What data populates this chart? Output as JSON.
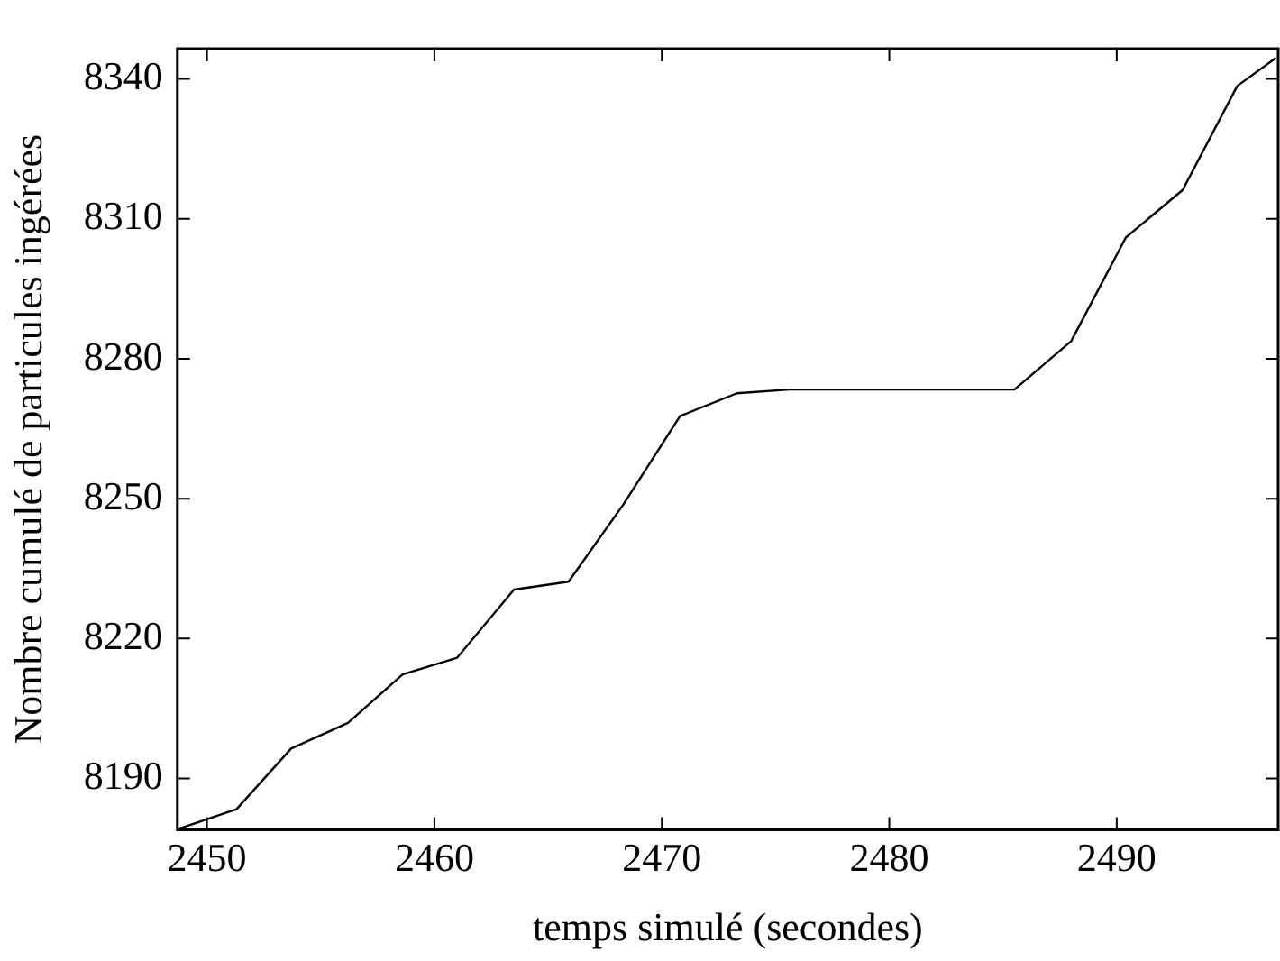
{
  "chart_data": {
    "type": "line",
    "xlabel": "temps simulé (secondes)",
    "ylabel": "Nombre cumulé de particules ingérées",
    "xlim": [
      2448.7,
      2497.1
    ],
    "xticks": [
      2450,
      2460,
      2470,
      2480,
      2490
    ],
    "ylim": [
      8179,
      8346.5
    ],
    "yticks": [
      8190,
      8220,
      8250,
      8280,
      8310,
      8340
    ],
    "grid": false,
    "legend": false,
    "marker": "none",
    "line_style": "solid",
    "series": [
      {
        "color": "#000000",
        "x": [
          2448.7,
          2451.3,
          2453.7,
          2456.2,
          2458.6,
          2461.0,
          2463.5,
          2465.9,
          2468.3,
          2470.8,
          2473.3,
          2475.6,
          2485.5,
          2488.0,
          2490.4,
          2492.9,
          2495.3,
          2497.0
        ],
        "values": [
          8179.1,
          8183.4,
          8196.4,
          8201.9,
          8212.3,
          8215.9,
          8230.5,
          8232.2,
          8248.7,
          8267.7,
          8272.6,
          8273.4,
          8273.4,
          8283.8,
          8306,
          8316.2,
          8338.5,
          8344.5
        ]
      }
    ]
  }
}
